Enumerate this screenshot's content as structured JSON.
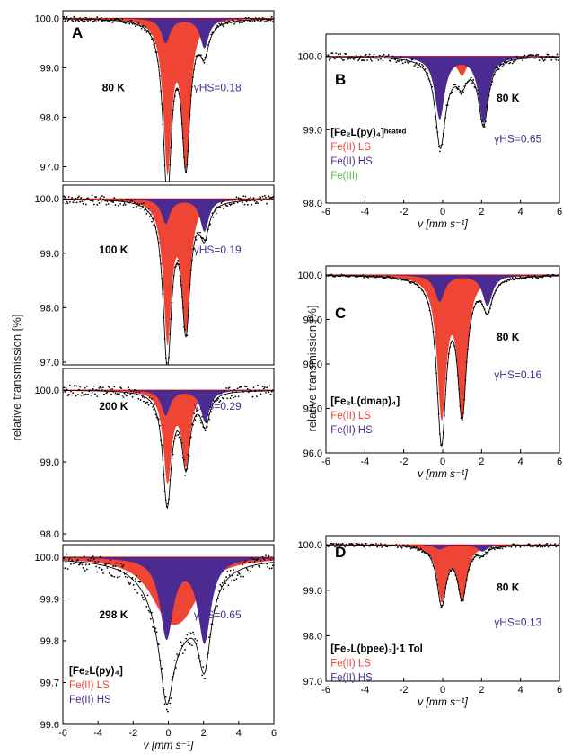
{
  "figure": {
    "left_ylabel": "relative transmission [%]",
    "right_ylabel": "relative transmission [%]",
    "colors": {
      "ls": "#ef4534",
      "hs": "#4b2b91",
      "fe3": "#5dbb46",
      "fit": "#c00000",
      "envelope": "#000000"
    }
  },
  "chart_data": [
    {
      "type": "scatter",
      "panel_letter": "A",
      "temperature": "80 K",
      "gamma_text": "γHS=0.18",
      "xlim": [
        -6,
        6
      ],
      "ylim": [
        96.7,
        100.15
      ],
      "yticks": [
        "100.0",
        "99.0",
        "98.0",
        "97.0"
      ],
      "yticks_values": [
        100.0,
        99.0,
        98.0,
        97.0
      ],
      "xticks": [],
      "xlabel": "",
      "components": [
        {
          "name": "Fe(II) LS",
          "color": "ls",
          "lines": [
            {
              "center": -0.05,
              "depth": 3.0,
              "width": 0.28
            },
            {
              "center": 1.0,
              "depth": 2.85,
              "width": 0.28
            }
          ]
        },
        {
          "name": "Fe(II) HS",
          "color": "hs",
          "lines": [
            {
              "center": -0.15,
              "depth": 0.5,
              "width": 0.3
            },
            {
              "center": 2.05,
              "depth": 0.6,
              "width": 0.3
            }
          ]
        }
      ],
      "noise": 0.05
    },
    {
      "type": "scatter",
      "temperature": "100 K",
      "gamma_text": "γHS=0.19",
      "xlim": [
        -6,
        6
      ],
      "ylim": [
        96.95,
        100.25
      ],
      "yticks": [
        "100.0",
        "99.0",
        "98.0",
        "97.0"
      ],
      "yticks_values": [
        100.0,
        99.0,
        98.0,
        97.0
      ],
      "xticks": [],
      "xlabel": "",
      "components": [
        {
          "name": "Fe(II) LS",
          "color": "ls",
          "lines": [
            {
              "center": -0.05,
              "depth": 2.55,
              "width": 0.28
            },
            {
              "center": 1.0,
              "depth": 2.3,
              "width": 0.28
            }
          ]
        },
        {
          "name": "Fe(II) HS",
          "color": "hs",
          "lines": [
            {
              "center": -0.15,
              "depth": 0.45,
              "width": 0.3
            },
            {
              "center": 2.05,
              "depth": 0.6,
              "width": 0.3
            }
          ]
        }
      ],
      "noise": 0.09
    },
    {
      "type": "scatter",
      "temperature": "200 K",
      "gamma_text": "γHS=0.29",
      "xlim": [
        -6,
        6
      ],
      "ylim": [
        97.9,
        100.3
      ],
      "yticks": [
        "100.0",
        "99.0",
        "98.0"
      ],
      "yticks_values": [
        100.0,
        99.0,
        98.0
      ],
      "xticks": [],
      "xlabel": "",
      "components": [
        {
          "name": "Fe(II) LS",
          "color": "ls",
          "lines": [
            {
              "center": -0.05,
              "depth": 1.25,
              "width": 0.28
            },
            {
              "center": 1.0,
              "depth": 1.0,
              "width": 0.28
            }
          ]
        },
        {
          "name": "Fe(II) HS",
          "color": "hs",
          "lines": [
            {
              "center": -0.15,
              "depth": 0.35,
              "width": 0.3
            },
            {
              "center": 2.1,
              "depth": 0.45,
              "width": 0.3
            }
          ]
        }
      ],
      "noise": 0.08
    },
    {
      "type": "scatter",
      "temperature": "298 K",
      "gamma_text": "γHS=0.65",
      "xlim": [
        -6,
        6
      ],
      "ylim": [
        99.6,
        100.03
      ],
      "yticks": [
        "100.0",
        "99.9",
        "99.8",
        "99.7",
        "99.6"
      ],
      "yticks_values": [
        100.0,
        99.9,
        99.8,
        99.7,
        99.6
      ],
      "xticks": [
        "-6",
        "-4",
        "-2",
        "0",
        "2",
        "4",
        "6"
      ],
      "xticks_values": [
        -6,
        -4,
        -2,
        0,
        2,
        4,
        6
      ],
      "xlabel": "v [mm s⁻¹]",
      "legend": {
        "title": "[Fe₂L(py)₄]",
        "entries": [
          {
            "text": "Fe(II) LS",
            "color": "ls"
          },
          {
            "text": "Fe(II) HS",
            "color": "hs"
          }
        ]
      },
      "components": [
        {
          "name": "Fe(II) LS",
          "color": "ls",
          "lines": [
            {
              "center": -0.1,
              "depth": 0.1,
              "width": 1.2
            },
            {
              "center": 0.9,
              "depth": 0.09,
              "width": 1.2
            }
          ]
        },
        {
          "name": "Fe(II) HS",
          "color": "hs",
          "lines": [
            {
              "center": -0.1,
              "depth": 0.19,
              "width": 0.45
            },
            {
              "center": 2.05,
              "depth": 0.2,
              "width": 0.45
            }
          ]
        }
      ],
      "noise": 0.02
    },
    {
      "type": "scatter",
      "panel_letter": "B",
      "temperature": "80 K",
      "gamma_text": "γHS=0.65",
      "xlim": [
        -6,
        6
      ],
      "ylim": [
        98.0,
        100.3
      ],
      "yticks": [
        "100.0",
        "99.0",
        "98.0"
      ],
      "yticks_values": [
        100.0,
        99.0,
        98.0
      ],
      "xticks": [
        "-6",
        "-4",
        "-2",
        "0",
        "2",
        "4",
        "6"
      ],
      "xticks_values": [
        -6,
        -4,
        -2,
        0,
        2,
        4,
        6
      ],
      "xlabel": "v [mm s⁻¹]",
      "legend": {
        "title": "[Fe₂L(py)₄]ʰᵉᵃᵗᵉᵈ",
        "entries": [
          {
            "text": "Fe(II) LS",
            "color": "ls"
          },
          {
            "text": "Fe(II) HS",
            "color": "hs"
          },
          {
            "text": "Fe(III)",
            "color": "fe3"
          }
        ]
      },
      "components": [
        {
          "name": "Fe(III)",
          "color": "fe3",
          "lines": [
            {
              "center": 0.4,
              "depth": 0.15,
              "width": 0.8
            }
          ]
        },
        {
          "name": "Fe(II) LS",
          "color": "ls",
          "lines": [
            {
              "center": -0.05,
              "depth": 0.3,
              "width": 0.28
            },
            {
              "center": 1.0,
              "depth": 0.25,
              "width": 0.28
            }
          ]
        },
        {
          "name": "Fe(II) HS",
          "color": "hs",
          "lines": [
            {
              "center": -0.15,
              "depth": 0.85,
              "width": 0.3
            },
            {
              "center": 2.1,
              "depth": 0.9,
              "width": 0.3
            }
          ]
        }
      ],
      "noise": 0.05
    },
    {
      "type": "scatter",
      "panel_letter": "C",
      "temperature": "80 K",
      "gamma_text": "γHS=0.16",
      "xlim": [
        -6,
        6
      ],
      "ylim": [
        96.0,
        100.2
      ],
      "yticks": [
        "100.0",
        "99.0",
        "98.0",
        "97.0",
        "96.0"
      ],
      "yticks_values": [
        100.0,
        99.0,
        98.0,
        97.0,
        96.0
      ],
      "xticks": [
        "-6",
        "-4",
        "-2",
        "0",
        "2",
        "4",
        "6"
      ],
      "xticks_values": [
        -6,
        -4,
        -2,
        0,
        2,
        4,
        6
      ],
      "xlabel": "v [mm s⁻¹]",
      "legend": {
        "title": "[Fe₂L(dmap)₄]",
        "entries": [
          {
            "text": "Fe(II) LS",
            "color": "ls"
          },
          {
            "text": "Fe(II) HS",
            "color": "hs"
          }
        ]
      },
      "components": [
        {
          "name": "Fe(II) LS",
          "color": "ls",
          "lines": [
            {
              "center": -0.05,
              "depth": 3.1,
              "width": 0.28
            },
            {
              "center": 1.0,
              "depth": 3.0,
              "width": 0.28
            }
          ]
        },
        {
          "name": "Fe(II) HS",
          "color": "hs",
          "lines": [
            {
              "center": -0.15,
              "depth": 0.6,
              "width": 0.3
            },
            {
              "center": 2.3,
              "depth": 0.7,
              "width": 0.3
            }
          ]
        }
      ],
      "noise": 0.03
    },
    {
      "type": "scatter",
      "panel_letter": "D",
      "temperature": "80 K",
      "gamma_text": "γHS=0.13",
      "xlim": [
        -6,
        6
      ],
      "ylim": [
        97.0,
        100.2
      ],
      "yticks": [
        "100.0",
        "99.0",
        "98.0",
        "97.0"
      ],
      "yticks_values": [
        100.0,
        99.0,
        98.0,
        97.0
      ],
      "xticks": [
        "-6",
        "-4",
        "-2",
        "0",
        "2",
        "4",
        "6"
      ],
      "xticks_values": [
        -6,
        -4,
        -2,
        0,
        2,
        4,
        6
      ],
      "xlabel": "v [mm s⁻¹]",
      "legend": {
        "title": "[Fe₂L(bpee)₂]·1 Tol",
        "entries": [
          {
            "text": "Fe(II) LS",
            "color": "ls"
          },
          {
            "text": "Fe(II) HS",
            "color": "hs"
          }
        ]
      },
      "components": [
        {
          "name": "Fe(II) LS",
          "color": "ls",
          "lines": [
            {
              "center": -0.05,
              "depth": 1.2,
              "width": 0.28
            },
            {
              "center": 1.0,
              "depth": 1.15,
              "width": 0.28
            }
          ]
        },
        {
          "name": "Fe(II) HS",
          "color": "hs",
          "lines": [
            {
              "center": -0.15,
              "depth": 0.1,
              "width": 0.3
            },
            {
              "center": 2.05,
              "depth": 0.15,
              "width": 0.3
            }
          ]
        }
      ],
      "noise": 0.04
    }
  ]
}
